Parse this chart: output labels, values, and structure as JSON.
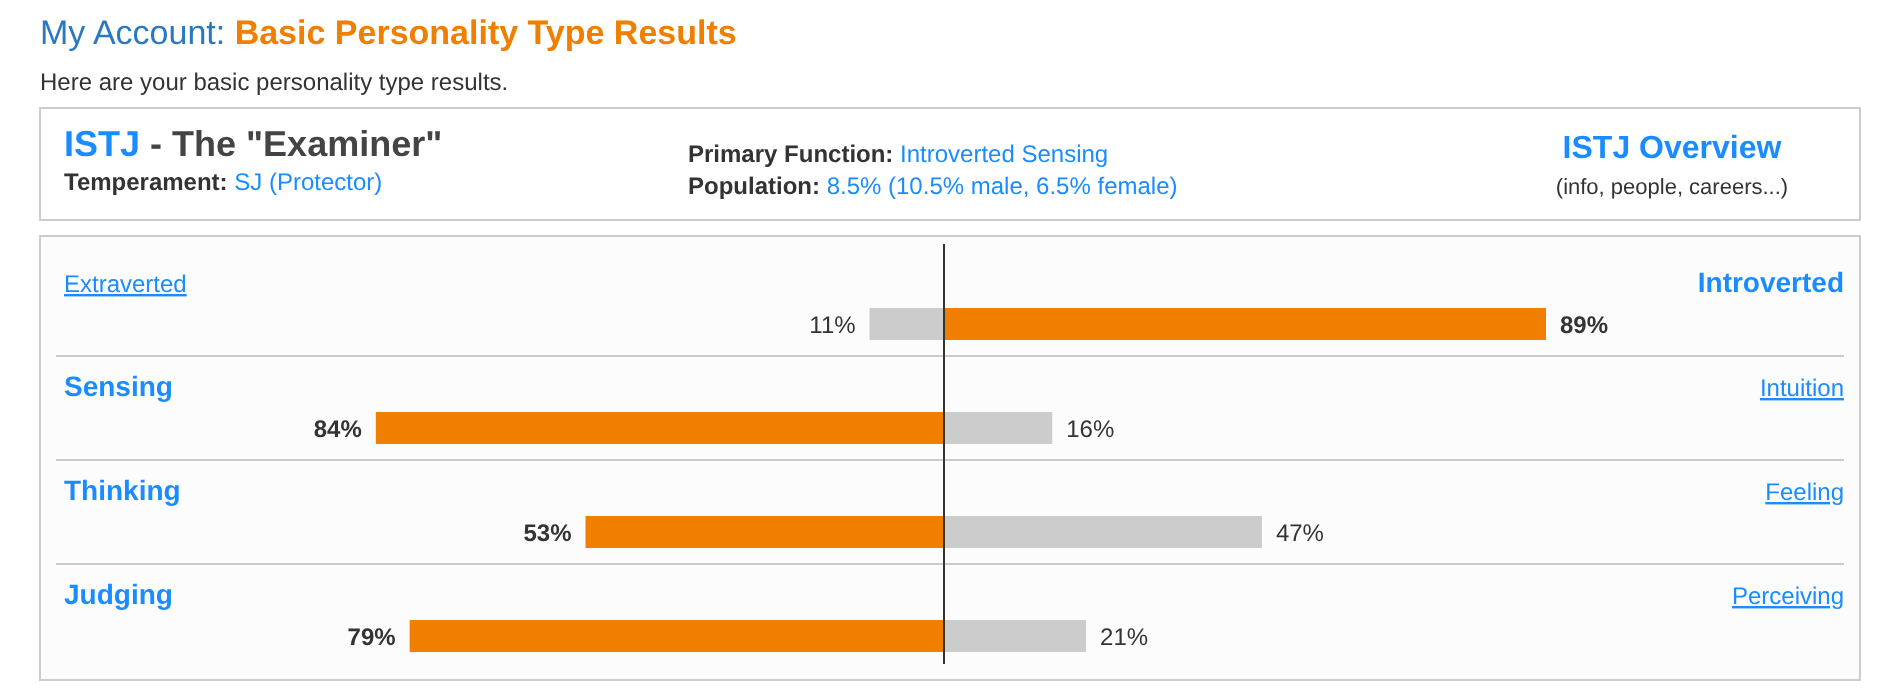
{
  "chart_data": [
    {
      "type": "bar",
      "orientation": "horizontal",
      "title": "My Account: Basic Personality Type Results",
      "subtitle": "Here are your basic personality type results.",
      "categories": [
        "Extraverted",
        "Sensing",
        "Thinking",
        "Judging"
      ],
      "values": [
        11,
        84,
        53,
        79
      ],
      "colors": [
        "#cccccc",
        "#f07f00",
        "#f07f00",
        "#f07f00"
      ],
      "value_labels": [
        "11%",
        "84%",
        "53%",
        "79%"
      ],
      "annotations": [
        "ISTJ - The \"Examiner\"",
        "Temperament: SJ (Protector)",
        "Primary Function: Introverted Sensing",
        "Population: 8.5% (10.5% male, 6.5% female)",
        "ISTJ Overview",
        "(info, people, careers...)"
      ]
    },
    {
      "type": "bar",
      "orientation": "horizontal",
      "categories": [
        "Introverted",
        "Intuition",
        "Feeling",
        "Perceiving"
      ],
      "values": [
        89,
        16,
        47,
        21
      ],
      "colors": [
        "#f07f00",
        "#cccccc",
        "#cccccc",
        "#cccccc"
      ],
      "value_labels": [
        "89%",
        "16%",
        "47%",
        "21%"
      ]
    }
  ]
}
